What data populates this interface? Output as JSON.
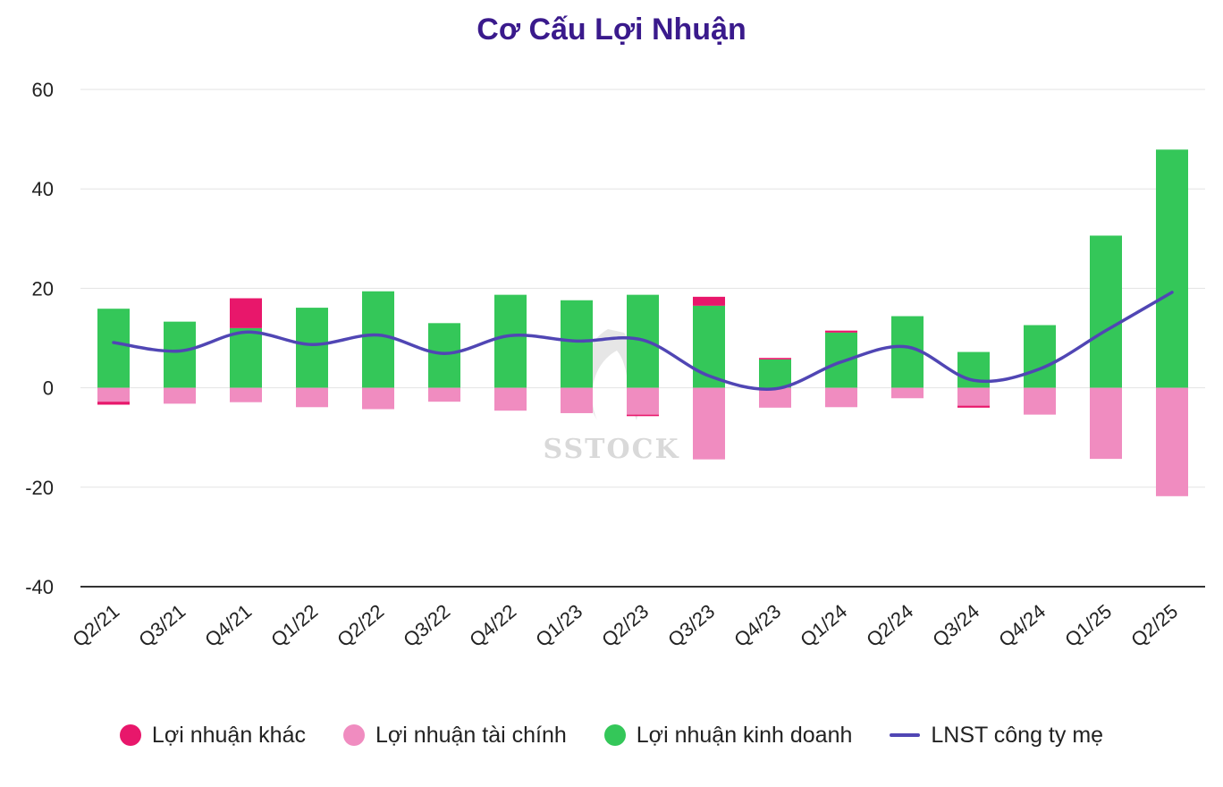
{
  "chart_data": {
    "type": "bar",
    "title": "Cơ Cấu Lợi Nhuận",
    "categories": [
      "Q2/21",
      "Q3/21",
      "Q4/21",
      "Q1/22",
      "Q2/22",
      "Q3/22",
      "Q4/22",
      "Q1/23",
      "Q2/23",
      "Q3/23",
      "Q4/23",
      "Q1/24",
      "Q2/24",
      "Q3/24",
      "Q4/24",
      "Q1/25",
      "Q2/25"
    ],
    "ylim": [
      -40,
      60
    ],
    "yticks": [
      60,
      40,
      20,
      0,
      -20,
      -40
    ],
    "grid": true,
    "legend_position": "bottom",
    "stacked": true,
    "series": [
      {
        "name": "Lợi nhuận khác",
        "kind": "bar",
        "color": "#e8176b",
        "values": [
          -0.6,
          0,
          6.0,
          0,
          0,
          0,
          0,
          0,
          -0.3,
          1.8,
          0.3,
          0.4,
          0,
          -0.4,
          0,
          0,
          0
        ]
      },
      {
        "name": "Lợi nhuận tài chính",
        "kind": "bar",
        "color": "#f08cc0",
        "values": [
          -2.8,
          -3.2,
          -2.9,
          -3.9,
          -4.3,
          -2.8,
          -4.6,
          -5.1,
          -5.4,
          -14.4,
          -4.0,
          -3.9,
          -2.1,
          -3.6,
          -5.4,
          -14.3,
          -21.8
        ]
      },
      {
        "name": "Lợi nhuận kinh doanh",
        "kind": "bar",
        "color": "#34c759",
        "values": [
          15.9,
          13.3,
          12.0,
          16.1,
          19.4,
          13.0,
          18.7,
          17.6,
          18.7,
          16.5,
          5.7,
          11.1,
          14.4,
          7.2,
          12.6,
          30.6,
          47.9
        ]
      },
      {
        "name": "LNST công ty mẹ",
        "kind": "line",
        "color": "#5046b4",
        "values": [
          9.1,
          7.4,
          11.2,
          8.7,
          10.6,
          6.9,
          10.5,
          9.4,
          9.6,
          2.4,
          -0.2,
          5.2,
          8.2,
          1.5,
          3.8,
          11.5,
          19.2
        ]
      }
    ]
  },
  "watermark": "SSTOCK"
}
